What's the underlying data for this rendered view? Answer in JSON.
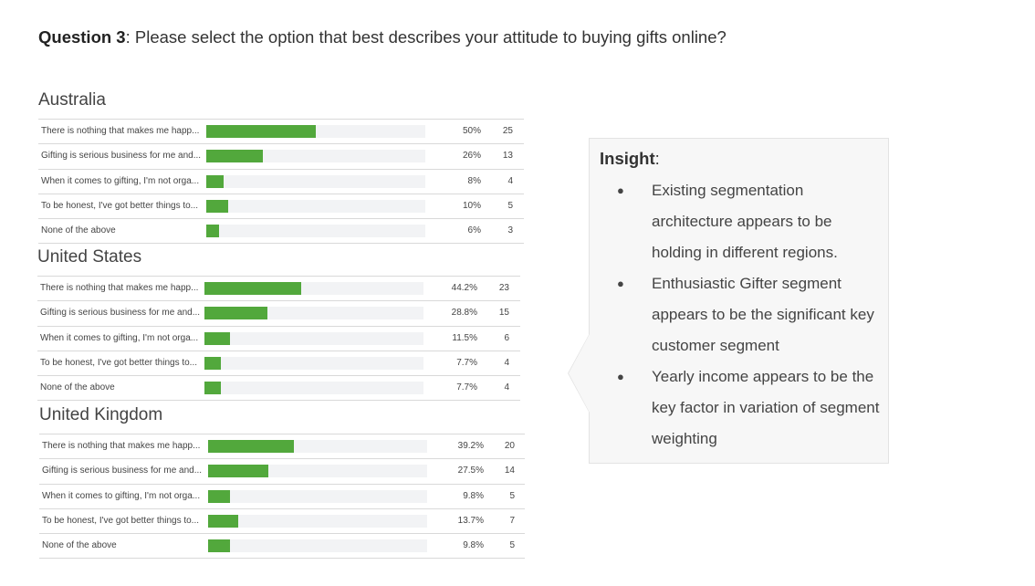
{
  "question": {
    "label": "Question 3",
    "text": ": Please select the option that best describes your attitude to buying gifts online?"
  },
  "chart_data": [
    {
      "type": "bar",
      "title": "Australia",
      "categories": [
        "There is nothing that makes me happ...",
        "Gifting is serious business for me and...",
        "When it comes to gifting, I'm not orga...",
        "To be honest, I've got better things to...",
        "None of the above"
      ],
      "values": [
        50,
        26,
        8,
        10,
        6
      ],
      "value_labels": [
        "50%",
        "26%",
        "8%",
        "10%",
        "6%"
      ],
      "counts": [
        "25",
        "13",
        "4",
        "5",
        "3"
      ],
      "xlim": [
        0,
        100
      ],
      "orientation": "horizontal",
      "color": "#52a83c"
    },
    {
      "type": "bar",
      "title": "United States",
      "categories": [
        "There is nothing that makes me happ...",
        "Gifting is serious business for me and...",
        "When it comes to gifting, I'm not orga...",
        "To be honest, I've got better things to...",
        "None of the above"
      ],
      "values": [
        44.2,
        28.8,
        11.5,
        7.7,
        7.7
      ],
      "value_labels": [
        "44.2%",
        "28.8%",
        "11.5%",
        "7.7%",
        "7.7%"
      ],
      "counts": [
        "23",
        "15",
        "6",
        "4",
        "4"
      ],
      "xlim": [
        0,
        100
      ],
      "orientation": "horizontal",
      "color": "#52a83c"
    },
    {
      "type": "bar",
      "title": "United Kingdom",
      "categories": [
        "There is nothing that makes me happ...",
        "Gifting is serious business for me and...",
        "When it comes to gifting, I'm not orga...",
        "To be honest, I've got better things to...",
        "None of the above"
      ],
      "values": [
        39.2,
        27.5,
        9.8,
        13.7,
        9.8
      ],
      "value_labels": [
        "39.2%",
        "27.5%",
        "9.8%",
        "13.7%",
        "9.8%"
      ],
      "counts": [
        "20",
        "14",
        "5",
        "7",
        "5"
      ],
      "xlim": [
        0,
        100
      ],
      "orientation": "horizontal",
      "color": "#52a83c"
    }
  ],
  "insight": {
    "title": "Insight",
    "colon": ":",
    "bullets": [
      "Existing segmentation architecture appears to be holding in different regions.",
      "Enthusiastic Gifter  segment appears to be the significant key customer segment",
      "Yearly income appears to be the key factor in variation of segment weighting"
    ]
  }
}
